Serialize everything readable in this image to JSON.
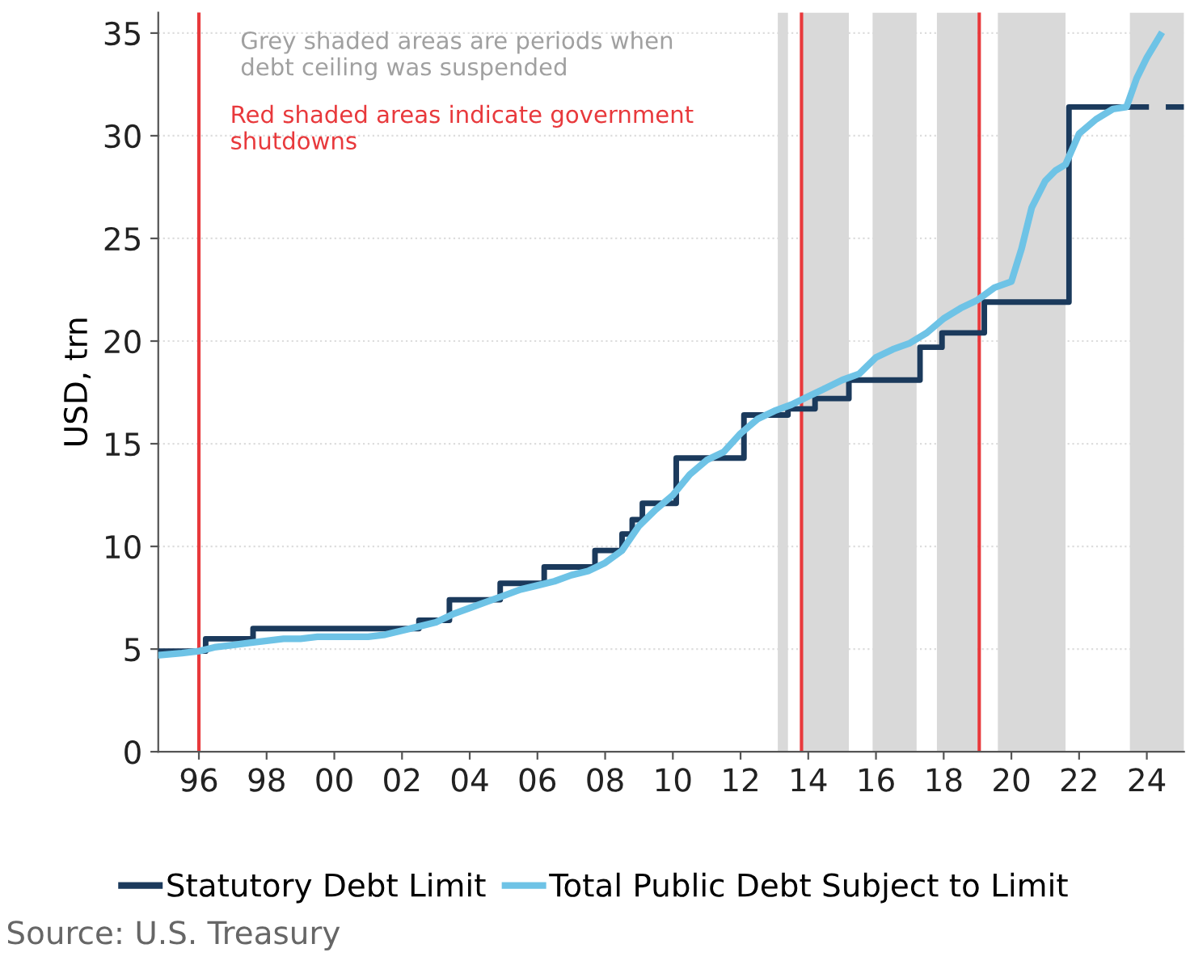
{
  "chart_data": {
    "type": "step",
    "ylabel": "USD, trn",
    "xlim": [
      1994.8,
      2025.1
    ],
    "ylim": [
      0,
      36
    ],
    "xticks": [
      {
        "value": 1996,
        "label": "96"
      },
      {
        "value": 1998,
        "label": "98"
      },
      {
        "value": 2000,
        "label": "00"
      },
      {
        "value": 2002,
        "label": "02"
      },
      {
        "value": 2004,
        "label": "04"
      },
      {
        "value": 2006,
        "label": "06"
      },
      {
        "value": 2008,
        "label": "08"
      },
      {
        "value": 2010,
        "label": "10"
      },
      {
        "value": 2012,
        "label": "12"
      },
      {
        "value": 2014,
        "label": "14"
      },
      {
        "value": 2016,
        "label": "16"
      },
      {
        "value": 2018,
        "label": "18"
      },
      {
        "value": 2020,
        "label": "20"
      },
      {
        "value": 2022,
        "label": "22"
      },
      {
        "value": 2024,
        "label": "24"
      }
    ],
    "yticks": [
      0,
      5,
      10,
      15,
      20,
      25,
      30,
      35
    ],
    "grid": "y",
    "legend": "bottom",
    "series": [
      {
        "name": "Statutory Debt Limit",
        "color": "#1b3a5c",
        "x": [
          1994.8,
          1996.2,
          1997.6,
          2002.5,
          2003.4,
          2004.9,
          2006.2,
          2007.7,
          2008.5,
          2008.8,
          2009.1,
          2010.1,
          2012.1,
          2013.4,
          2014.2,
          2015.2,
          2017.3,
          2017.95,
          2019.2,
          2021.7,
          2023.4
        ],
        "values": [
          4.9,
          5.5,
          6.0,
          6.4,
          7.4,
          8.2,
          9.0,
          9.8,
          10.6,
          11.3,
          12.1,
          14.3,
          16.4,
          16.7,
          17.2,
          18.1,
          19.7,
          20.4,
          21.9,
          31.4,
          31.4
        ]
      },
      {
        "color": "#1b3a5c",
        "line_style": "dashed",
        "x": [
          2023.4,
          2025.1
        ],
        "values": [
          31.4,
          31.4
        ]
      },
      {
        "name": "Total Public Debt Subject to Limit",
        "type": "line",
        "color": "#6ec3e6",
        "x": [
          1994.8,
          1995.5,
          1996.0,
          1996.5,
          1997.0,
          1997.5,
          1998.0,
          1998.5,
          1999.0,
          1999.5,
          2000.0,
          2000.5,
          2001.0,
          2001.5,
          2002.0,
          2002.5,
          2003.0,
          2003.5,
          2004.0,
          2004.5,
          2005.0,
          2005.5,
          2006.0,
          2006.5,
          2007.0,
          2007.5,
          2008.0,
          2008.5,
          2009.0,
          2009.5,
          2010.0,
          2010.5,
          2011.0,
          2011.5,
          2012.0,
          2012.5,
          2013.0,
          2013.5,
          2014.0,
          2014.5,
          2015.0,
          2015.5,
          2016.0,
          2016.5,
          2017.0,
          2017.5,
          2018.0,
          2018.5,
          2019.0,
          2019.5,
          2020.0,
          2020.3,
          2020.6,
          2021.0,
          2021.3,
          2021.6,
          2022.0,
          2022.5,
          2023.0,
          2023.4,
          2023.7,
          2024.0,
          2024.4
        ],
        "values": [
          4.7,
          4.8,
          4.9,
          5.1,
          5.2,
          5.3,
          5.4,
          5.5,
          5.5,
          5.6,
          5.6,
          5.6,
          5.6,
          5.7,
          5.9,
          6.1,
          6.3,
          6.7,
          7.0,
          7.3,
          7.6,
          7.9,
          8.1,
          8.3,
          8.6,
          8.8,
          9.2,
          9.8,
          11.0,
          11.8,
          12.5,
          13.5,
          14.2,
          14.6,
          15.5,
          16.2,
          16.6,
          16.9,
          17.3,
          17.7,
          18.1,
          18.4,
          19.2,
          19.6,
          19.9,
          20.4,
          21.1,
          21.6,
          22.0,
          22.6,
          22.9,
          24.5,
          26.5,
          27.8,
          28.3,
          28.6,
          30.1,
          30.8,
          31.3,
          31.4,
          32.8,
          33.8,
          34.9
        ]
      }
    ],
    "bands": [
      {
        "axis": "x",
        "from": 2013.1,
        "to": 2013.4,
        "color": "#d9d9d9"
      },
      {
        "axis": "x",
        "from": 2013.8,
        "to": 2015.2,
        "color": "#d9d9d9"
      },
      {
        "axis": "x",
        "from": 2015.9,
        "to": 2017.2,
        "color": "#d9d9d9"
      },
      {
        "axis": "x",
        "from": 2017.8,
        "to": 2019.0,
        "color": "#d9d9d9"
      },
      {
        "axis": "x",
        "from": 2019.6,
        "to": 2021.6,
        "color": "#d9d9d9"
      },
      {
        "axis": "x",
        "from": 2023.5,
        "to": 2025.1,
        "color": "#d9d9d9"
      }
    ],
    "ref_lines": [
      {
        "axis": "x",
        "value": 1996.0,
        "color": "#e8393c"
      },
      {
        "axis": "x",
        "value": 2013.8,
        "color": "#e8393c"
      },
      {
        "axis": "x",
        "value": 2019.05,
        "color": "#e8393c"
      }
    ],
    "annotations": [
      "Grey shaded areas are periods when debt ceiling was suspended",
      "Red shaded areas indicate government shutdowns",
      "Source: U.S. Treasury"
    ]
  }
}
